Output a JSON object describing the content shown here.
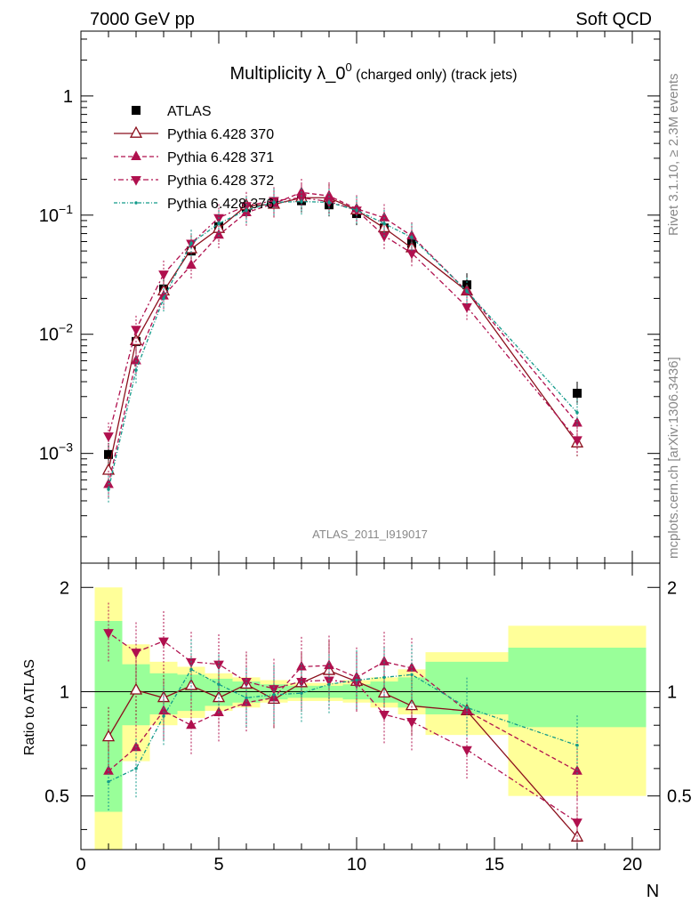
{
  "header": {
    "left": "7000 GeV pp",
    "right": "Soft QCD"
  },
  "title": {
    "main": "Multiplicity λ_0",
    "sup": "0",
    "small": " (charged only) (track jets)"
  },
  "side_labels": {
    "rivet": "Rivet 3.1.10, ≥ 2.3M events",
    "mcplots": "mcplots.cern.ch [arXiv:1306.3436]"
  },
  "watermark": "ATLAS_2011_I919017",
  "ratio_ylabel": "Ratio to ATLAS",
  "xlabel": "N",
  "upper_ticks": [
    {
      "value": 1,
      "base": "1",
      "exp": ""
    },
    {
      "value": 0.1,
      "base": "10",
      "exp": "−1"
    },
    {
      "value": 0.01,
      "base": "10",
      "exp": "−2"
    },
    {
      "value": 0.001,
      "base": "10",
      "exp": "−3"
    }
  ],
  "ratio_ticks": [
    "0.5",
    "1",
    "2"
  ],
  "x_ticks": [
    "0",
    "5",
    "10",
    "15",
    "20"
  ],
  "legend": [
    {
      "label": "ATLAS",
      "color": "#000000",
      "marker": "square"
    },
    {
      "label": "Pythia 6.428 370",
      "color": "#8b0f1c",
      "marker": "triangle-up-open"
    },
    {
      "label": "Pythia 6.428 371",
      "color": "#b0104e",
      "marker": "triangle-up"
    },
    {
      "label": "Pythia 6.428 372",
      "color": "#b0104e",
      "marker": "triangle-down"
    },
    {
      "label": "Pythia 6.428 376",
      "color": "#129a8a",
      "marker": "dot"
    }
  ],
  "colors": {
    "band_inner": "#99ff99",
    "band_outer": "#ffff99",
    "ref_line": "#000000"
  },
  "chart_data": {
    "type": "line",
    "xlabel": "N",
    "ylabel": "",
    "xlim": [
      0,
      21
    ],
    "ylim": [
      0.00012,
      3.5
    ],
    "ylog": true,
    "ratio_ylim": [
      0.35,
      2.35
    ],
    "ratio_ylog": true,
    "x": [
      1,
      2,
      3,
      4,
      5,
      6,
      7,
      8,
      9,
      10,
      11,
      12,
      14,
      18
    ],
    "bins": [
      [
        0.5,
        1.5
      ],
      [
        1.5,
        2.5
      ],
      [
        2.5,
        3.5
      ],
      [
        3.5,
        4.5
      ],
      [
        4.5,
        5.5
      ],
      [
        5.5,
        6.5
      ],
      [
        6.5,
        7.5
      ],
      [
        7.5,
        8.5
      ],
      [
        8.5,
        9.5
      ],
      [
        9.5,
        10.5
      ],
      [
        10.5,
        11.5
      ],
      [
        11.5,
        12.5
      ],
      [
        12.5,
        15.5
      ],
      [
        15.5,
        20.5
      ]
    ],
    "ratio_band_inner": [
      [
        0.45,
        1.6
      ],
      [
        0.8,
        1.2
      ],
      [
        0.86,
        1.13
      ],
      [
        0.88,
        1.12
      ],
      [
        0.91,
        1.09
      ],
      [
        0.93,
        1.07
      ],
      [
        0.95,
        1.05
      ],
      [
        0.96,
        1.04
      ],
      [
        0.96,
        1.04
      ],
      [
        0.95,
        1.05
      ],
      [
        0.93,
        1.07
      ],
      [
        0.9,
        1.1
      ],
      [
        0.86,
        1.22
      ],
      [
        0.79,
        1.34
      ]
    ],
    "ratio_band_outer": [
      [
        0.35,
        2.0
      ],
      [
        0.63,
        1.37
      ],
      [
        0.8,
        1.22
      ],
      [
        0.84,
        1.18
      ],
      [
        0.88,
        1.13
      ],
      [
        0.9,
        1.1
      ],
      [
        0.93,
        1.08
      ],
      [
        0.94,
        1.06
      ],
      [
        0.94,
        1.06
      ],
      [
        0.93,
        1.08
      ],
      [
        0.9,
        1.1
      ],
      [
        0.86,
        1.16
      ],
      [
        0.75,
        1.3
      ],
      [
        0.5,
        1.55
      ]
    ],
    "series": [
      {
        "name": "ATLAS",
        "values": [
          0.00098,
          0.0087,
          0.024,
          0.05,
          0.08,
          0.115,
          0.13,
          0.132,
          0.122,
          0.103,
          0.078,
          0.058,
          0.026,
          0.0032
        ]
      },
      {
        "name": "Pythia 6.428 370",
        "values": [
          0.00072,
          0.0088,
          0.023,
          0.052,
          0.077,
          0.12,
          0.123,
          0.14,
          0.14,
          0.11,
          0.078,
          0.053,
          0.023,
          0.00122
        ],
        "ratio": [
          0.74,
          1.01,
          0.96,
          1.04,
          0.96,
          1.05,
          0.95,
          1.06,
          1.15,
          1.07,
          0.99,
          0.91,
          0.88,
          0.38
        ]
      },
      {
        "name": "Pythia 6.428 371",
        "values": [
          0.00055,
          0.006,
          0.021,
          0.038,
          0.068,
          0.105,
          0.125,
          0.155,
          0.145,
          0.113,
          0.095,
          0.067,
          0.023,
          0.0018
        ],
        "ratio": [
          0.59,
          0.69,
          0.88,
          0.8,
          0.87,
          0.93,
          0.96,
          1.18,
          1.19,
          1.1,
          1.22,
          1.17,
          0.88,
          0.59
        ]
      },
      {
        "name": "Pythia 6.428 372",
        "values": [
          0.0014,
          0.011,
          0.032,
          0.058,
          0.095,
          0.12,
          0.132,
          0.14,
          0.13,
          0.11,
          0.067,
          0.048,
          0.017,
          0.0013
        ],
        "ratio": [
          1.48,
          1.3,
          1.4,
          1.22,
          1.2,
          1.07,
          1.02,
          1.07,
          1.08,
          1.06,
          0.86,
          0.82,
          0.68,
          0.42
        ]
      },
      {
        "name": "Pythia 6.428 376",
        "values": [
          0.0005,
          0.005,
          0.02,
          0.058,
          0.085,
          0.11,
          0.128,
          0.13,
          0.128,
          0.11,
          0.085,
          0.065,
          0.023,
          0.0022
        ],
        "ratio": [
          0.55,
          0.6,
          0.85,
          1.16,
          1.05,
          0.96,
          0.98,
          0.99,
          1.05,
          1.08,
          1.1,
          1.12,
          0.9,
          0.7
        ]
      }
    ]
  }
}
